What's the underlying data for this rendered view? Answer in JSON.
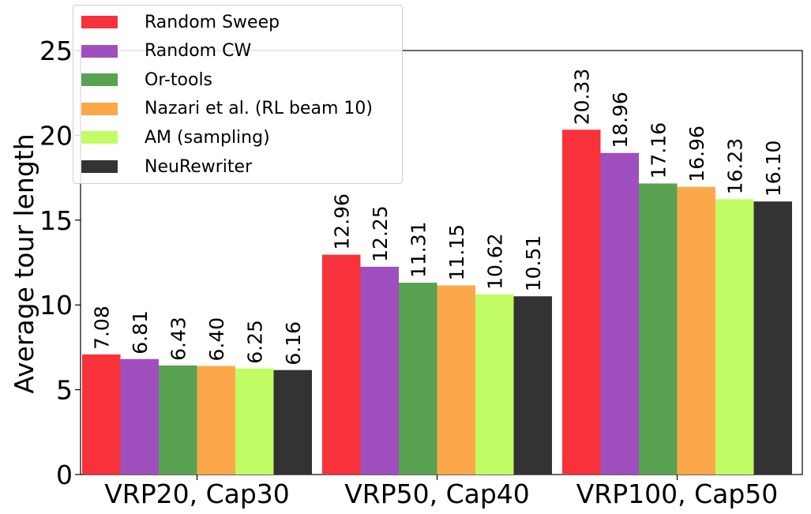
{
  "chart_data": {
    "type": "bar",
    "title": "",
    "xlabel": "",
    "ylabel": "Average tour length",
    "ylim": [
      0,
      25
    ],
    "yticks": [
      "0",
      "5",
      "10",
      "15",
      "20",
      "25"
    ],
    "categories": [
      "VRP20, Cap30",
      "VRP50, Cap40",
      "VRP100, Cap50"
    ],
    "series": [
      {
        "name": "Random Sweep",
        "color": "#f7323b",
        "values": [
          7.08,
          12.96,
          20.33
        ],
        "labels": [
          "7.08",
          "12.96",
          "20.33"
        ]
      },
      {
        "name": "Random CW",
        "color": "#9f4fbe",
        "values": [
          6.81,
          12.25,
          18.96
        ],
        "labels": [
          "6.81",
          "12.25",
          "18.96"
        ]
      },
      {
        "name": "Or-tools",
        "color": "#58a251",
        "values": [
          6.43,
          11.31,
          17.16
        ],
        "labels": [
          "6.43",
          "11.31",
          "17.16"
        ]
      },
      {
        "name": "Nazari et al. (RL beam 10)",
        "color": "#fca84a",
        "values": [
          6.4,
          11.15,
          16.96
        ],
        "labels": [
          "6.40",
          "11.15",
          "16.96"
        ]
      },
      {
        "name": "AM (sampling)",
        "color": "#c2fc64",
        "values": [
          6.25,
          10.62,
          16.23
        ],
        "labels": [
          "6.25",
          "10.62",
          "16.23"
        ]
      },
      {
        "name": "NeuRewriter",
        "color": "#333333",
        "values": [
          6.16,
          10.51,
          16.1
        ],
        "labels": [
          "6.16",
          "10.51",
          "16.10"
        ]
      }
    ],
    "legend_position": "top-left",
    "grid": false
  }
}
